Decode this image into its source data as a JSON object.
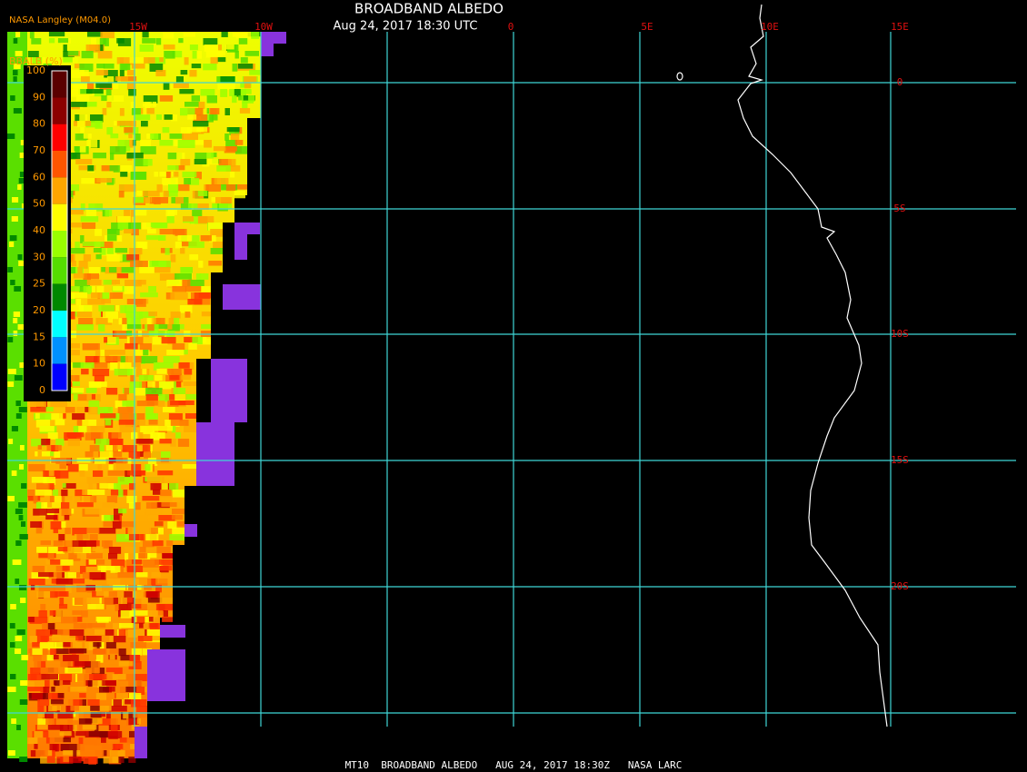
{
  "header": {
    "title": "BROADBAND ALBEDO",
    "subtitle": "Aug 24, 2017 18:30 UTC",
    "source": "NASA Langley (M04.0)"
  },
  "footer": "MT10  BROADBAND ALBEDO   AUG 24, 2017 18:30Z   NASA LARC",
  "legend": {
    "title": "BBALB (%)",
    "labels": [
      100,
      90,
      80,
      70,
      60,
      50,
      40,
      30,
      25,
      20,
      15,
      10,
      0
    ],
    "colors": [
      "#5a0000",
      "#8b0000",
      "#ff0000",
      "#ff5500",
      "#ffa500",
      "#ffff00",
      "#99ff00",
      "#55dd00",
      "#008800",
      "#00ffff",
      "#0090ff",
      "#0000ff",
      "#8833dd"
    ]
  },
  "longitude_labels": [
    "15W",
    "10W",
    "0",
    "5E",
    "10E",
    "15E"
  ],
  "latitude_labels": [
    "0",
    "5S",
    "10S",
    "15S",
    "20S"
  ]
}
